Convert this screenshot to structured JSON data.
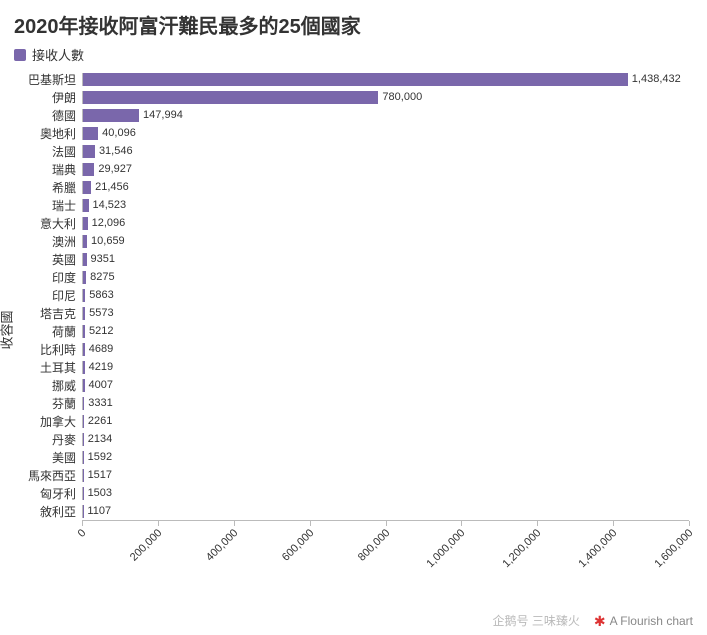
{
  "chart": {
    "type": "bar",
    "title": "2020年接收阿富汗難民最多的25個國家",
    "title_fontsize": 20,
    "legend": {
      "label": "接收人數",
      "color": "#7a67ab"
    },
    "y_axis_title": "收容國",
    "bar_color": "#7a67ab",
    "bar_max_value": 1600000,
    "background_color": "#ffffff",
    "axis_color": "#bbbbbb",
    "label_fontsize": 12,
    "value_fontsize": 11,
    "data": [
      {
        "category": "巴基斯坦",
        "value": 1438432,
        "display": "1,438,432"
      },
      {
        "category": "伊朗",
        "value": 780000,
        "display": "780,000"
      },
      {
        "category": "德國",
        "value": 147994,
        "display": "147,994"
      },
      {
        "category": "奧地利",
        "value": 40096,
        "display": "40,096"
      },
      {
        "category": "法國",
        "value": 31546,
        "display": "31,546"
      },
      {
        "category": "瑞典",
        "value": 29927,
        "display": "29,927"
      },
      {
        "category": "希臘",
        "value": 21456,
        "display": "21,456"
      },
      {
        "category": "瑞士",
        "value": 14523,
        "display": "14,523"
      },
      {
        "category": "意大利",
        "value": 12096,
        "display": "12,096"
      },
      {
        "category": "澳洲",
        "value": 10659,
        "display": "10,659"
      },
      {
        "category": "英國",
        "value": 9351,
        "display": "9351"
      },
      {
        "category": "印度",
        "value": 8275,
        "display": "8275"
      },
      {
        "category": "印尼",
        "value": 5863,
        "display": "5863"
      },
      {
        "category": "塔吉克",
        "value": 5573,
        "display": "5573"
      },
      {
        "category": "荷蘭",
        "value": 5212,
        "display": "5212"
      },
      {
        "category": "比利時",
        "value": 4689,
        "display": "4689"
      },
      {
        "category": "土耳其",
        "value": 4219,
        "display": "4219"
      },
      {
        "category": "挪威",
        "value": 4007,
        "display": "4007"
      },
      {
        "category": "芬蘭",
        "value": 3331,
        "display": "3331"
      },
      {
        "category": "加拿大",
        "value": 2261,
        "display": "2261"
      },
      {
        "category": "丹麥",
        "value": 2134,
        "display": "2134"
      },
      {
        "category": "美國",
        "value": 1592,
        "display": "1592"
      },
      {
        "category": "馬來西亞",
        "value": 1517,
        "display": "1517"
      },
      {
        "category": "匈牙利",
        "value": 1503,
        "display": "1503"
      },
      {
        "category": "敘利亞",
        "value": 1107,
        "display": "1107"
      }
    ],
    "x_axis": {
      "min": 0,
      "max": 1600000,
      "step": 200000,
      "ticks": [
        {
          "v": 0,
          "label": "0"
        },
        {
          "v": 200000,
          "label": "200,000"
        },
        {
          "v": 400000,
          "label": "400,000"
        },
        {
          "v": 600000,
          "label": "600,000"
        },
        {
          "v": 800000,
          "label": "800,000"
        },
        {
          "v": 1000000,
          "label": "1,000,000"
        },
        {
          "v": 1200000,
          "label": "1,200,000"
        },
        {
          "v": 1400000,
          "label": "1,400,000"
        },
        {
          "v": 1600000,
          "label": "1,600,000"
        }
      ]
    }
  },
  "watermark": {
    "source": "企鹅号 三味臻火",
    "flourish": "A Flourish chart"
  }
}
